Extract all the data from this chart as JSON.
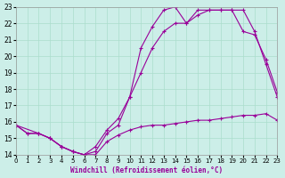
{
  "background_color": "#cceee8",
  "grid_color": "#aaddcc",
  "line_color": "#990099",
  "xlabel": "Windchill (Refroidissement éolien,°C)",
  "xlim": [
    0,
    23
  ],
  "ylim": [
    14,
    23
  ],
  "yticks": [
    14,
    15,
    16,
    17,
    18,
    19,
    20,
    21,
    22,
    23
  ],
  "xticks": [
    0,
    1,
    2,
    3,
    4,
    5,
    6,
    7,
    8,
    9,
    10,
    11,
    12,
    13,
    14,
    15,
    16,
    17,
    18,
    19,
    20,
    21,
    22,
    23
  ],
  "line1_x": [
    0,
    1,
    2,
    3,
    4,
    5,
    6,
    7,
    8,
    9,
    10,
    11,
    12,
    13,
    14,
    15,
    16,
    17,
    18,
    19,
    20,
    21,
    22,
    23
  ],
  "line1_y": [
    15.8,
    15.3,
    15.3,
    15.0,
    14.5,
    14.2,
    14.0,
    14.0,
    14.8,
    15.2,
    15.5,
    15.7,
    15.8,
    15.8,
    15.9,
    16.0,
    16.1,
    16.1,
    16.2,
    16.3,
    16.4,
    16.4,
    16.5,
    16.1
  ],
  "line2_x": [
    0,
    1,
    2,
    3,
    4,
    5,
    6,
    7,
    8,
    9,
    10,
    11,
    12,
    13,
    14,
    15,
    16,
    17,
    18,
    19,
    20,
    21,
    22,
    23
  ],
  "line2_y": [
    15.8,
    15.3,
    15.3,
    15.0,
    14.5,
    14.2,
    14.0,
    14.5,
    15.5,
    16.2,
    17.5,
    19.0,
    20.5,
    21.5,
    22.0,
    22.0,
    22.5,
    22.8,
    22.8,
    22.8,
    21.5,
    21.3,
    19.8,
    17.8
  ],
  "line3_x": [
    0,
    2,
    3,
    4,
    5,
    6,
    7,
    8,
    9,
    10,
    11,
    12,
    13,
    14,
    15,
    16,
    17,
    18,
    19,
    20,
    21,
    22,
    23
  ],
  "line3_y": [
    15.8,
    15.3,
    15.0,
    14.5,
    14.2,
    14.0,
    14.2,
    15.3,
    15.8,
    17.5,
    20.5,
    21.8,
    22.8,
    23.0,
    22.0,
    22.8,
    22.8,
    22.8,
    22.8,
    22.8,
    21.5,
    19.5,
    17.5
  ]
}
